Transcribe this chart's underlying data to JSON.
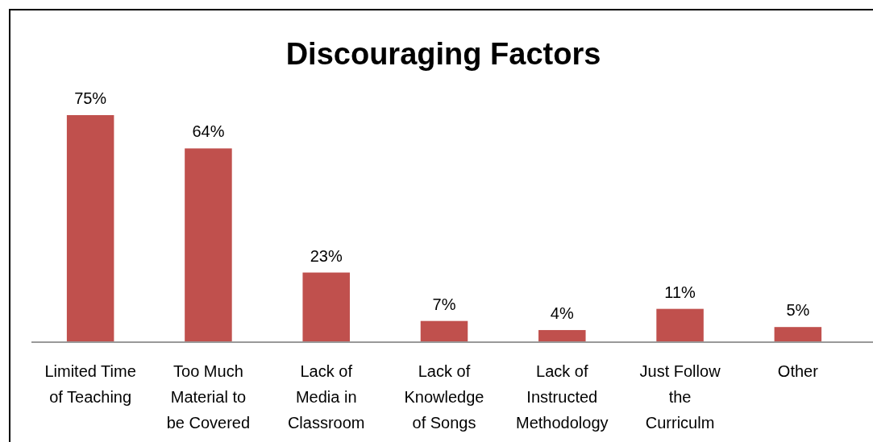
{
  "chart_data": {
    "type": "bar",
    "title": "Discouraging Factors",
    "categories": [
      "Limited Time\nof Teaching",
      "Too Much\nMaterial to\nbe Covered",
      "Lack of\nMedia in\nClassroom",
      "Lack of\nKnowledge\nof Songs",
      "Lack of\nInstructed\nMethodology",
      "Just Follow\nthe\nCurriculm",
      "Other"
    ],
    "values": [
      75,
      64,
      23,
      7,
      4,
      11,
      5
    ],
    "value_labels": [
      "75%",
      "64%",
      "23%",
      "7%",
      "4%",
      "11%",
      "5%"
    ],
    "color": "#c0504d"
  }
}
